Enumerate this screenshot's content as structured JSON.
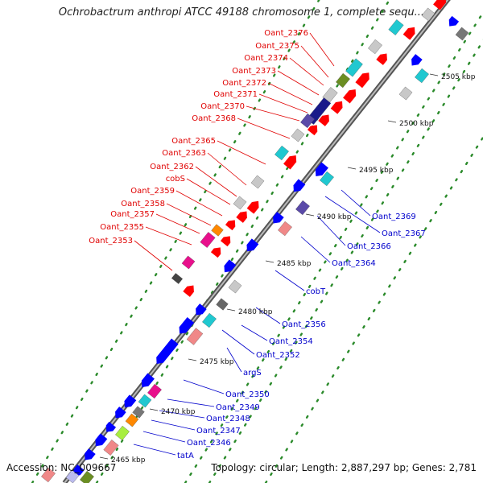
{
  "title": "Ochrobactrum anthropi ATCC 49188 chromosome 1, complete sequ...",
  "footer": {
    "accession": "Accession: NC_009667",
    "info": "Topology: circular; Length: 2,887,297 bp; Genes: 2,781"
  },
  "colors": {
    "backbone": "#777777",
    "dots": "#2a8a2a",
    "top_label": "#e00000",
    "bottom_label": "#0000cc",
    "forward_gene": "#ff0000",
    "reverse_gene": "#0000ff",
    "cog_cyan": "#20c8d0",
    "cog_gray": "#c8c8c8",
    "cog_navy": "#1a1a8a",
    "cog_olive": "#6b8e23",
    "cog_pink": "#e8108c",
    "cog_orange": "#ff8800",
    "cog_salmon": "#f08888",
    "cog_lime": "#a8ee40",
    "cog_purple": "#5a4aa8"
  },
  "kbp_ticks": [
    "2465 kbp",
    "2470 kbp",
    "2475 kbp",
    "2480 kbp",
    "2485 kbp",
    "2490 kbp",
    "2495 kbp",
    "2500 kbp",
    "2505 kbp"
  ],
  "top_labels": [
    "Oant_2376",
    "Oant_2375",
    "Oant_2374",
    "Oant_2373",
    "Oant_2372",
    "Oant_2371",
    "Oant_2370",
    "Oant_2368",
    "Oant_2365",
    "Oant_2363",
    "Oant_2362",
    "cobS",
    "Oant_2359",
    "Oant_2358",
    "Oant_2357",
    "Oant_2355",
    "Oant_2353"
  ],
  "bottom_labels": [
    "Oant_2369",
    "Oant_2367",
    "Oant_2366",
    "Oant_2364",
    "cobT",
    "Oant_2356",
    "Oant_2354",
    "Oant_2352",
    "argS",
    "Oant_2350",
    "Oant_2349",
    "Oant_2348",
    "Oant_2347",
    "Oant_2346",
    "tatA"
  ]
}
